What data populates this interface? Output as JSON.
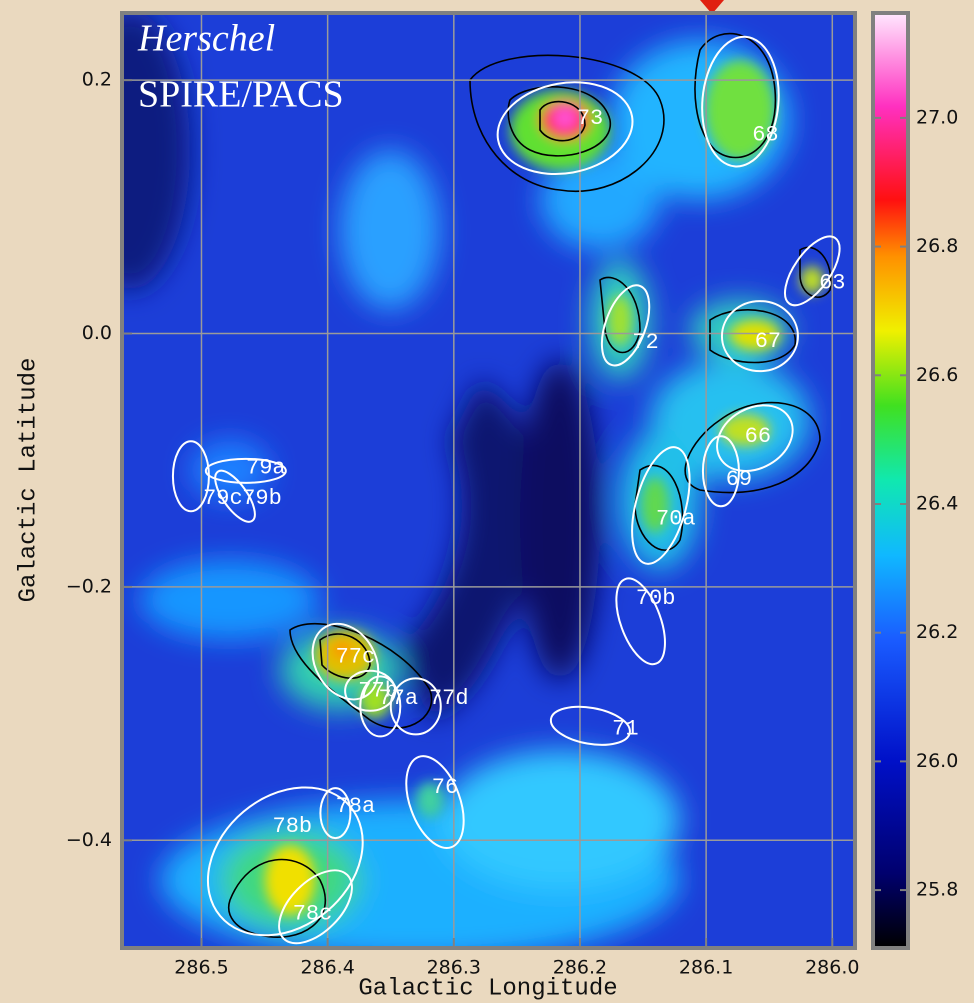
{
  "chart_data": {
    "type": "heatmap",
    "annotations": [
      "Herschel",
      "SPIRE/PACS"
    ],
    "xlabel": "Galactic Longitude",
    "ylabel": "Galactic Latitude",
    "xlim": [
      286.563,
      285.982
    ],
    "xticks": [
      286.5,
      286.4,
      286.3,
      286.2,
      286.1,
      {
        "value": 286.0,
        "label": "286.0"
      }
    ],
    "ylim": [
      -0.485,
      0.253
    ],
    "yticks": [
      {
        "value": -0.4,
        "label": "−0.4"
      },
      {
        "value": -0.2,
        "label": "−0.2"
      },
      {
        "value": 0,
        "label": "0.0"
      },
      0.2
    ],
    "grid": true,
    "grid_color": "#9a9a9a",
    "ellipse_color": "#ffffff",
    "colorbar": {
      "lim": [
        25.71,
        27.163
      ],
      "ticks": [
        25.8,
        {
          "value": 26.0,
          "label": "26.0"
        },
        26.2,
        26.4,
        26.6,
        26.8,
        {
          "value": 27.0,
          "label": "27.0"
        }
      ]
    },
    "clumps": [
      {
        "label": "73",
        "x": 286.192,
        "y": 0.17
      },
      {
        "label": "68",
        "x": 286.053,
        "y": 0.157
      },
      {
        "label": "63",
        "x": 286.0,
        "y": 0.04
      },
      {
        "label": "67",
        "x": 286.051,
        "y": -0.006
      },
      {
        "label": "72",
        "x": 286.148,
        "y": -0.007
      },
      {
        "label": "66",
        "x": 286.059,
        "y": -0.081
      },
      {
        "label": "69",
        "x": 286.074,
        "y": -0.115
      },
      {
        "label": "70a",
        "x": 286.124,
        "y": -0.146
      },
      {
        "label": "70b",
        "x": 286.14,
        "y": -0.209
      },
      {
        "label": "71",
        "x": 286.164,
        "y": -0.312
      },
      {
        "label": "79a",
        "x": 286.449,
        "y": -0.106
      },
      {
        "label": "79c",
        "x": 286.483,
        "y": -0.13
      },
      {
        "label": "79b",
        "x": 286.452,
        "y": -0.13
      },
      {
        "label": "77c",
        "x": 286.378,
        "y": -0.255
      },
      {
        "label": "77b",
        "x": 286.36,
        "y": -0.282
      },
      {
        "label": "77a",
        "x": 286.344,
        "y": -0.288
      },
      {
        "label": "77d",
        "x": 286.304,
        "y": -0.288
      },
      {
        "label": "76",
        "x": 286.307,
        "y": -0.358
      },
      {
        "label": "78a",
        "x": 286.378,
        "y": -0.373
      },
      {
        "label": "78b",
        "x": 286.428,
        "y": -0.389
      },
      {
        "label": "78c",
        "x": 286.412,
        "y": -0.458
      }
    ]
  }
}
